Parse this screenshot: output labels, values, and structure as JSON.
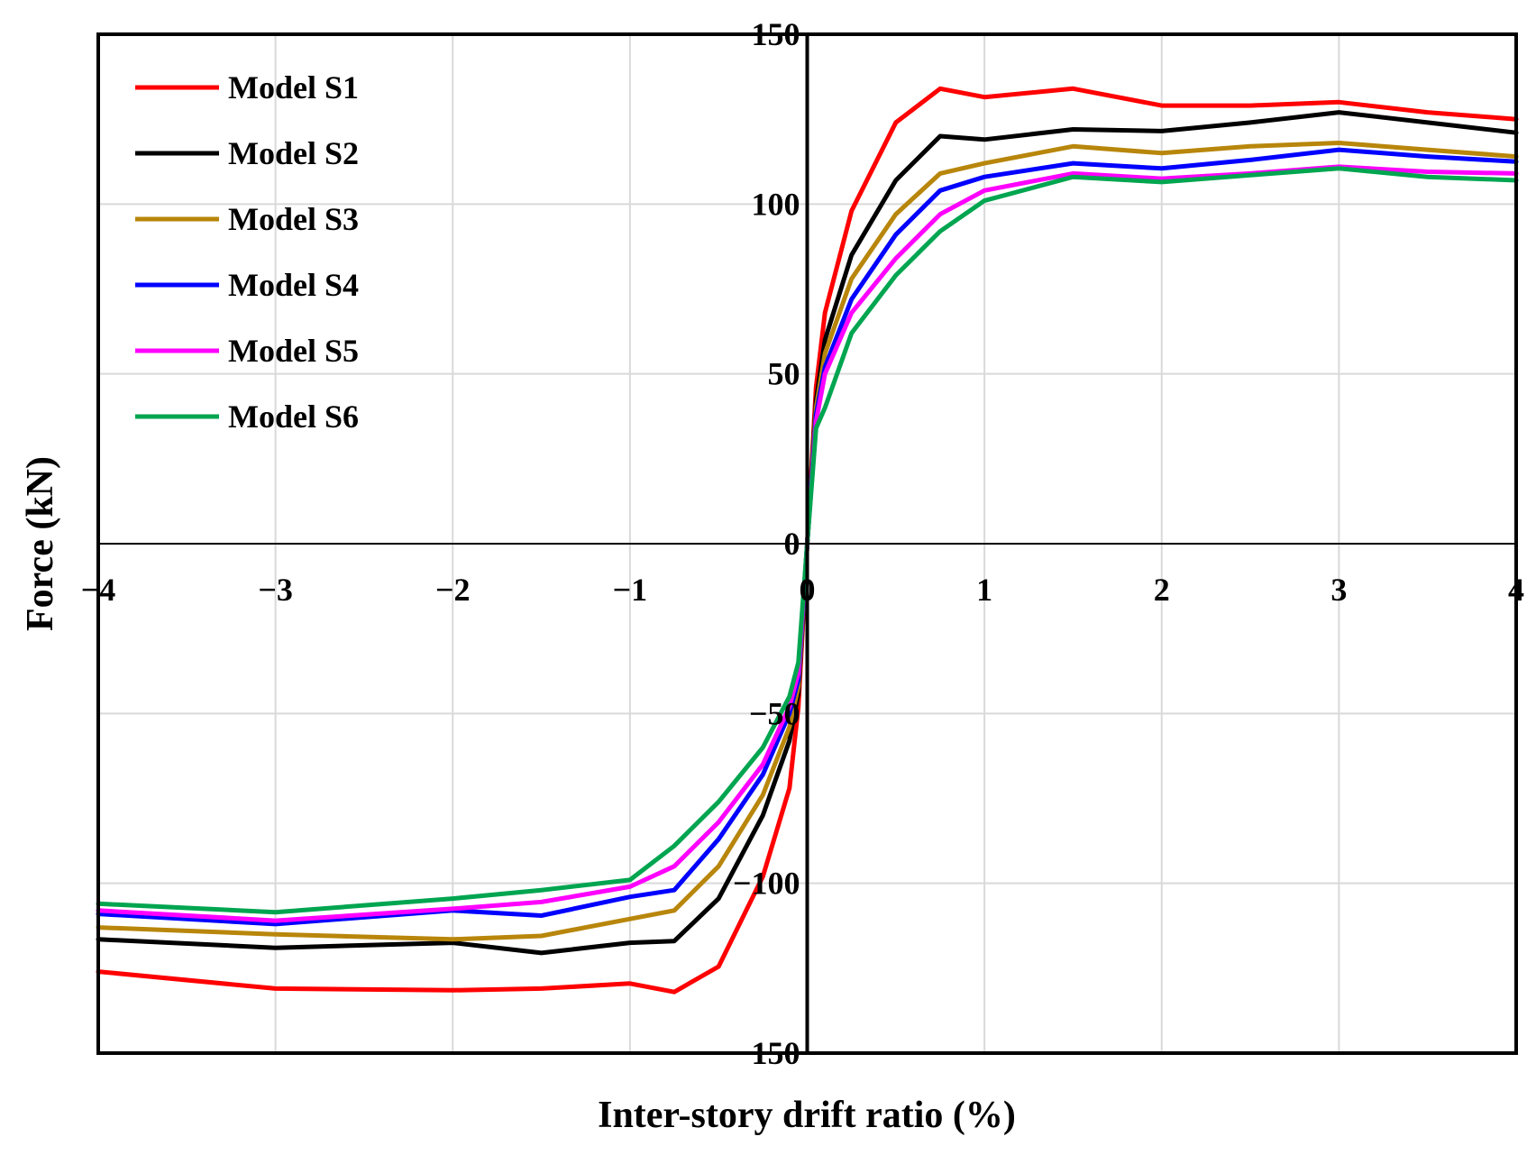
{
  "chart_data": {
    "type": "line",
    "title": "",
    "xlabel": "Inter-story drift ratio (%)",
    "ylabel": "Force (kN)",
    "xlim": [
      -4,
      4
    ],
    "ylim": [
      -150,
      150
    ],
    "grid": true,
    "legend_position": "top-left",
    "x_ticks": [
      -4,
      -3,
      -2,
      -1,
      0,
      1,
      2,
      3,
      4
    ],
    "y_ticks": [
      -150,
      -100,
      -50,
      0,
      50,
      100,
      150
    ],
    "x_tick_labels": [
      "−4",
      "−3",
      "−2",
      "−1",
      "0",
      "1",
      "2",
      "3",
      "4"
    ],
    "y_tick_labels": [
      "−150",
      "−100",
      "−50",
      "0",
      "50",
      "100",
      "150"
    ],
    "series": [
      {
        "name": "Model S1",
        "color": "#ff0000",
        "points": [
          [
            -4,
            -126
          ],
          [
            -3,
            -131
          ],
          [
            -2,
            -131.5
          ],
          [
            -1.5,
            -131
          ],
          [
            -1,
            -129.5
          ],
          [
            -0.75,
            -132
          ],
          [
            -0.5,
            -124.5
          ],
          [
            -0.25,
            -98
          ],
          [
            -0.1,
            -72
          ],
          [
            -0.05,
            -48
          ],
          [
            0,
            0
          ],
          [
            0.05,
            46
          ],
          [
            0.1,
            68
          ],
          [
            0.25,
            98
          ],
          [
            0.5,
            124
          ],
          [
            0.75,
            134
          ],
          [
            1,
            131.5
          ],
          [
            1.5,
            134
          ],
          [
            2,
            129
          ],
          [
            2.5,
            129
          ],
          [
            3,
            130
          ],
          [
            3.5,
            127
          ],
          [
            4,
            125
          ]
        ]
      },
      {
        "name": "Model S2",
        "color": "#000000",
        "points": [
          [
            -4,
            -116.5
          ],
          [
            -3,
            -119
          ],
          [
            -2,
            -117.5
          ],
          [
            -1.5,
            -120.5
          ],
          [
            -1,
            -117.5
          ],
          [
            -0.75,
            -117
          ],
          [
            -0.5,
            -104.5
          ],
          [
            -0.25,
            -80
          ],
          [
            -0.1,
            -58
          ],
          [
            -0.05,
            -44
          ],
          [
            0,
            0
          ],
          [
            0.05,
            42
          ],
          [
            0.1,
            60
          ],
          [
            0.25,
            85
          ],
          [
            0.5,
            107
          ],
          [
            0.75,
            120
          ],
          [
            1,
            119
          ],
          [
            1.5,
            122
          ],
          [
            2,
            121.5
          ],
          [
            2.5,
            124
          ],
          [
            3,
            127
          ],
          [
            3.5,
            124
          ],
          [
            4,
            121
          ]
        ]
      },
      {
        "name": "Model S3",
        "color": "#b8860b",
        "points": [
          [
            -4,
            -113
          ],
          [
            -3,
            -115
          ],
          [
            -2,
            -116.5
          ],
          [
            -1.5,
            -115.5
          ],
          [
            -1,
            -110.5
          ],
          [
            -0.75,
            -108
          ],
          [
            -0.5,
            -95
          ],
          [
            -0.25,
            -74
          ],
          [
            -0.1,
            -54
          ],
          [
            -0.05,
            -42
          ],
          [
            0,
            0
          ],
          [
            0.05,
            40
          ],
          [
            0.1,
            56
          ],
          [
            0.25,
            78
          ],
          [
            0.5,
            97
          ],
          [
            0.75,
            109
          ],
          [
            1,
            112
          ],
          [
            1.5,
            117
          ],
          [
            2,
            115
          ],
          [
            2.5,
            117
          ],
          [
            3,
            118
          ],
          [
            3.5,
            116
          ],
          [
            4,
            114
          ]
        ]
      },
      {
        "name": "Model S4",
        "color": "#0000ff",
        "points": [
          [
            -4,
            -109
          ],
          [
            -3,
            -112
          ],
          [
            -2,
            -108
          ],
          [
            -1.5,
            -109.5
          ],
          [
            -1,
            -104
          ],
          [
            -0.75,
            -102
          ],
          [
            -0.5,
            -87
          ],
          [
            -0.25,
            -68
          ],
          [
            -0.1,
            -50
          ],
          [
            -0.05,
            -40
          ],
          [
            0,
            0
          ],
          [
            0.05,
            38
          ],
          [
            0.1,
            52
          ],
          [
            0.25,
            72
          ],
          [
            0.5,
            91
          ],
          [
            0.75,
            104
          ],
          [
            1,
            108
          ],
          [
            1.5,
            112
          ],
          [
            2,
            110.5
          ],
          [
            2.5,
            113
          ],
          [
            3,
            116
          ],
          [
            3.5,
            114
          ],
          [
            4,
            112.5
          ]
        ]
      },
      {
        "name": "Model S5",
        "color": "#ff00ff",
        "points": [
          [
            -4,
            -108
          ],
          [
            -3,
            -111
          ],
          [
            -2,
            -107.5
          ],
          [
            -1.5,
            -105.5
          ],
          [
            -1,
            -101
          ],
          [
            -0.75,
            -95
          ],
          [
            -0.5,
            -82
          ],
          [
            -0.25,
            -65
          ],
          [
            -0.1,
            -48
          ],
          [
            -0.05,
            -38
          ],
          [
            0,
            0
          ],
          [
            0.05,
            36
          ],
          [
            0.1,
            50
          ],
          [
            0.25,
            68
          ],
          [
            0.5,
            84
          ],
          [
            0.75,
            97
          ],
          [
            1,
            104
          ],
          [
            1.5,
            109
          ],
          [
            2,
            107.5
          ],
          [
            2.5,
            109
          ],
          [
            3,
            111
          ],
          [
            3.5,
            109.5
          ],
          [
            4,
            109
          ]
        ]
      },
      {
        "name": "Model S6",
        "color": "#00a550",
        "points": [
          [
            -4,
            -106
          ],
          [
            -3,
            -108.5
          ],
          [
            -2,
            -104.5
          ],
          [
            -1.5,
            -102
          ],
          [
            -1,
            -99
          ],
          [
            -0.75,
            -89
          ],
          [
            -0.5,
            -76
          ],
          [
            -0.25,
            -60
          ],
          [
            -0.1,
            -45
          ],
          [
            -0.05,
            -35
          ],
          [
            0,
            0
          ],
          [
            0.05,
            34
          ],
          [
            0.1,
            40
          ],
          [
            0.25,
            62
          ],
          [
            0.5,
            79
          ],
          [
            0.75,
            92
          ],
          [
            1,
            101
          ],
          [
            1.5,
            108
          ],
          [
            2,
            106.5
          ],
          [
            2.5,
            108.5
          ],
          [
            3,
            110.5
          ],
          [
            3.5,
            108
          ],
          [
            4,
            107
          ]
        ]
      }
    ]
  }
}
